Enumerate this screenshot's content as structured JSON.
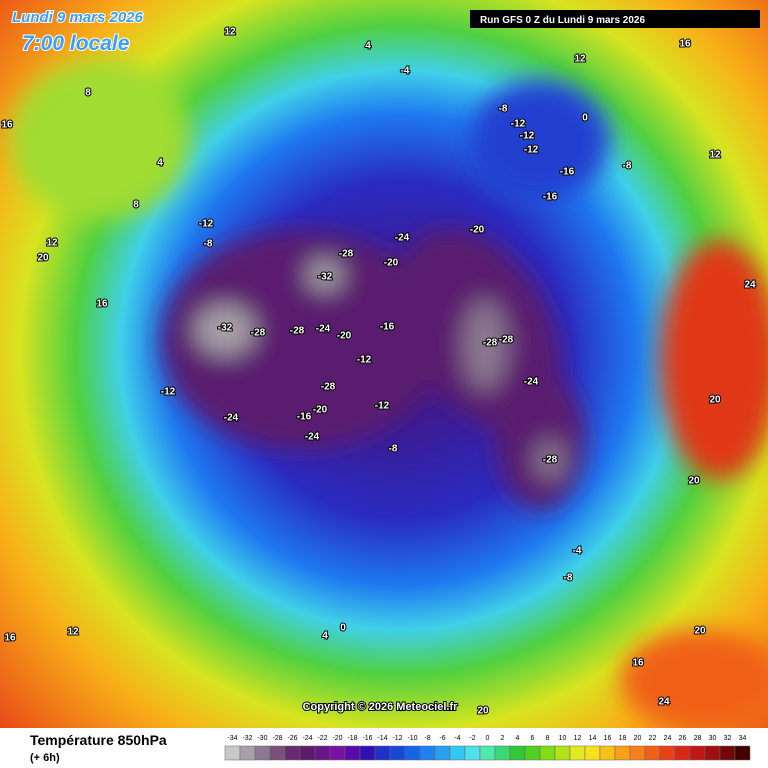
{
  "header": {
    "date": "Lundi 9 mars 2026",
    "time": "7:00 locale",
    "run": "Run GFS 0 Z du Lundi 9 mars 2026"
  },
  "map": {
    "copyright": "Copyright © 2026 Meteociel.fr",
    "contour_labels": [
      -32,
      -32,
      -28,
      -28,
      -28,
      -24,
      -20,
      -16,
      -12,
      -24,
      -20,
      -20,
      -28,
      -28,
      -24,
      -28,
      -16,
      -16,
      -12,
      -12,
      -12,
      -8,
      -8,
      0,
      -12,
      -8,
      -12,
      -24,
      -28,
      -20,
      -16,
      -24,
      -12,
      -8,
      -4,
      4,
      8,
      12,
      16,
      20,
      12,
      16,
      24,
      20,
      20,
      12,
      4,
      12,
      16,
      8,
      -4,
      -8,
      0,
      4,
      12,
      16,
      20,
      24,
      16,
      20
    ]
  },
  "legend": {
    "title": "Température 850hPa",
    "lead": "(+ 6h)",
    "labels": [
      -34,
      -32,
      -30,
      -28,
      -26,
      -24,
      -22,
      -20,
      -18,
      -16,
      -14,
      -12,
      -10,
      -8,
      -6,
      -4,
      -2,
      0,
      2,
      4,
      6,
      8,
      10,
      12,
      14,
      16,
      18,
      20,
      22,
      24,
      26,
      28,
      30,
      32,
      34
    ],
    "colors": [
      "#c8c8c8",
      "#a8a0a8",
      "#8c7890",
      "#785078",
      "#6a2870",
      "#5a1a6e",
      "#6a148a",
      "#7a10a0",
      "#5a0aa8",
      "#3010b0",
      "#2030c8",
      "#1848d8",
      "#1464e8",
      "#1e82f0",
      "#28a0f0",
      "#32c8f0",
      "#50e0e8",
      "#50e8b0",
      "#3cd878",
      "#30c838",
      "#50d020",
      "#80dc18",
      "#b0e418",
      "#e0e820",
      "#f8e020",
      "#f8c018",
      "#f8a018",
      "#f88018",
      "#f06018",
      "#e84018",
      "#d82818",
      "#c01818",
      "#a01010",
      "#700808",
      "#400000"
    ]
  }
}
